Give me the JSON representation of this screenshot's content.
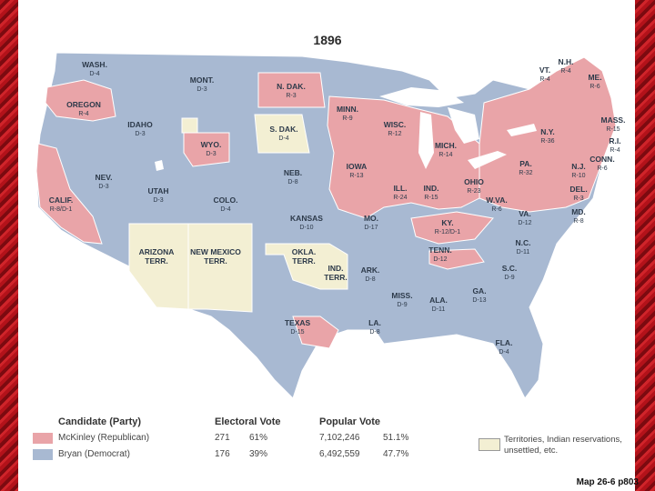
{
  "map": {
    "title": "1896",
    "colors": {
      "republican": "#e9a4a8",
      "democrat": "#a8b9d2",
      "territory": "#f3efd3",
      "water": "#ffffff",
      "lake": "#ffffff",
      "border": "#ffffff"
    },
    "states": [
      {
        "name": "WASH.",
        "votes": "D-4"
      },
      {
        "name": "OREGON",
        "votes": "R-4"
      },
      {
        "name": "CALIF.",
        "votes": "R-8/D-1"
      },
      {
        "name": "NEV.",
        "votes": "D-3"
      },
      {
        "name": "IDAHO",
        "votes": "D-3"
      },
      {
        "name": "MONT.",
        "votes": "D-3"
      },
      {
        "name": "WYO.",
        "votes": "D-3"
      },
      {
        "name": "UTAH",
        "votes": "D-3"
      },
      {
        "name": "COLO.",
        "votes": "D-4"
      },
      {
        "name": "N. DAK.",
        "votes": "R-3"
      },
      {
        "name": "S. DAK.",
        "votes": "D-4"
      },
      {
        "name": "NEB.",
        "votes": "D-8"
      },
      {
        "name": "KANSAS",
        "votes": "D-10"
      },
      {
        "name": "TEXAS",
        "votes": "D-15"
      },
      {
        "name": "MINN.",
        "votes": "R-9"
      },
      {
        "name": "IOWA",
        "votes": "R-13"
      },
      {
        "name": "MO.",
        "votes": "D-17"
      },
      {
        "name": "ARK.",
        "votes": "D-8"
      },
      {
        "name": "LA.",
        "votes": "D-8"
      },
      {
        "name": "WISC.",
        "votes": "R-12"
      },
      {
        "name": "ILL.",
        "votes": "R-24"
      },
      {
        "name": "MICH.",
        "votes": "R-14"
      },
      {
        "name": "IND.",
        "votes": "R-15"
      },
      {
        "name": "OHIO",
        "votes": "R-23"
      },
      {
        "name": "KY.",
        "votes": "R-12/D-1"
      },
      {
        "name": "TENN.",
        "votes": "D-12"
      },
      {
        "name": "MISS.",
        "votes": "D-9"
      },
      {
        "name": "ALA.",
        "votes": "D-11"
      },
      {
        "name": "GA.",
        "votes": "D-13"
      },
      {
        "name": "FLA.",
        "votes": "D-4"
      },
      {
        "name": "S.C.",
        "votes": "D-9"
      },
      {
        "name": "N.C.",
        "votes": "D-11"
      },
      {
        "name": "VA.",
        "votes": "D-12"
      },
      {
        "name": "W.VA.",
        "votes": "R-6"
      },
      {
        "name": "PA.",
        "votes": "R-32"
      },
      {
        "name": "N.Y.",
        "votes": "R-36"
      },
      {
        "name": "VT.",
        "votes": "R-4"
      },
      {
        "name": "N.H.",
        "votes": "R-4"
      },
      {
        "name": "ME.",
        "votes": "R-6"
      },
      {
        "name": "MASS.",
        "votes": "R-15"
      },
      {
        "name": "R.I.",
        "votes": "R-4"
      },
      {
        "name": "CONN.",
        "votes": "R-6"
      },
      {
        "name": "N.J.",
        "votes": "R-10"
      },
      {
        "name": "DEL.",
        "votes": "R-3"
      },
      {
        "name": "MD.",
        "votes": "R-8"
      }
    ],
    "territories": [
      {
        "name": "ARIZONA",
        "line2": "TERR."
      },
      {
        "name": "NEW MEXICO",
        "line2": "TERR."
      },
      {
        "name": "OKLA.",
        "line2": "TERR."
      },
      {
        "name": "IND.",
        "line2": "TERR."
      }
    ]
  },
  "legend": {
    "headers": {
      "candidate": "Candidate (Party)",
      "electoral": "Electoral Vote",
      "popular": "Popular Vote"
    },
    "rows": [
      {
        "candidate": "McKinley (Republican)",
        "ev": "271",
        "ev_pct": "61%",
        "pv": "7,102,246",
        "pv_pct": "51.1%"
      },
      {
        "candidate": "Bryan (Democrat)",
        "ev": "176",
        "ev_pct": "39%",
        "pv": "6,492,559",
        "pv_pct": "47.7%"
      }
    ],
    "territory_note": "Territories, Indian reservations, unsettled, etc."
  },
  "caption": "Map 26-6 p803"
}
